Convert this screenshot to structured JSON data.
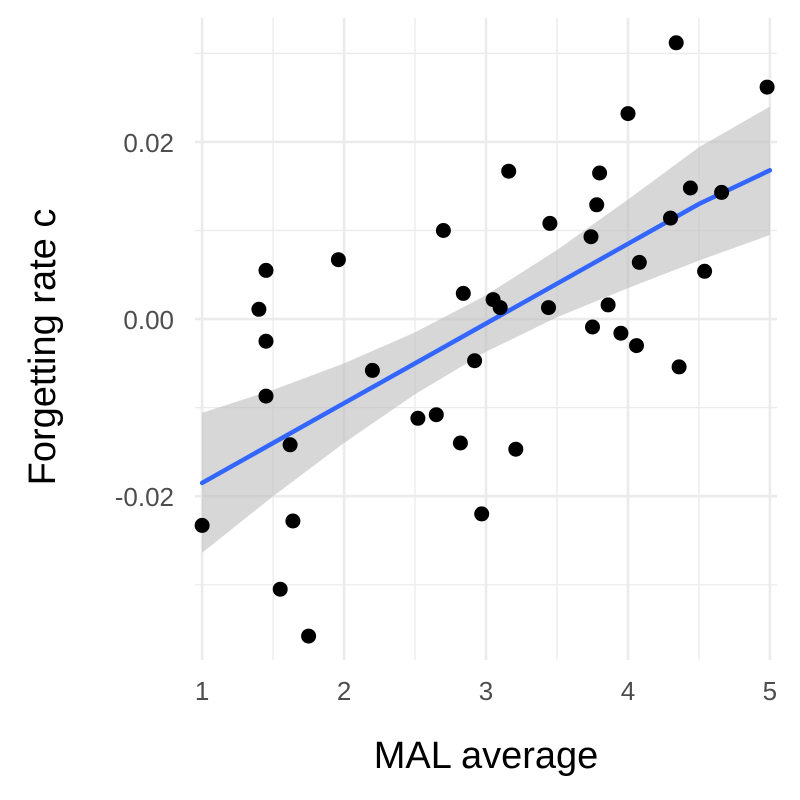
{
  "chart_data": {
    "type": "scatter",
    "title": "",
    "xlabel": "MAL average",
    "ylabel": "Forgetting rate c",
    "xlim": [
      0.95,
      5.05
    ],
    "ylim": [
      -0.0385,
      0.034
    ],
    "x_ticks": [
      1,
      2,
      3,
      4,
      5
    ],
    "x_tick_labels": [
      "1",
      "2",
      "3",
      "4",
      "5"
    ],
    "y_ticks": [
      -0.02,
      0.0,
      0.02
    ],
    "y_tick_labels": [
      "-0.02",
      "0.00",
      "0.02"
    ],
    "grid": true,
    "legend": "none",
    "colors": {
      "points": "#000000",
      "fit_line": "#3366FF",
      "confidence_band": "#bfbfbf",
      "grid": "#ebebeb"
    },
    "points": [
      {
        "x": 1.0,
        "y": -0.0233
      },
      {
        "x": 1.4,
        "y": 0.0011
      },
      {
        "x": 1.45,
        "y": 0.0055
      },
      {
        "x": 1.45,
        "y": -0.0025
      },
      {
        "x": 1.45,
        "y": -0.0087
      },
      {
        "x": 1.55,
        "y": -0.0305
      },
      {
        "x": 1.62,
        "y": -0.0142
      },
      {
        "x": 1.64,
        "y": -0.0228
      },
      {
        "x": 1.75,
        "y": -0.0358
      },
      {
        "x": 1.96,
        "y": 0.0067
      },
      {
        "x": 2.2,
        "y": -0.0058
      },
      {
        "x": 2.52,
        "y": -0.0112
      },
      {
        "x": 2.65,
        "y": -0.0108
      },
      {
        "x": 2.7,
        "y": 0.01
      },
      {
        "x": 2.82,
        "y": -0.014
      },
      {
        "x": 2.84,
        "y": 0.0029
      },
      {
        "x": 2.92,
        "y": -0.0047
      },
      {
        "x": 2.97,
        "y": -0.022
      },
      {
        "x": 3.05,
        "y": 0.0022
      },
      {
        "x": 3.1,
        "y": 0.0013
      },
      {
        "x": 3.16,
        "y": 0.0167
      },
      {
        "x": 3.21,
        "y": -0.0147
      },
      {
        "x": 3.44,
        "y": 0.0013
      },
      {
        "x": 3.45,
        "y": 0.0108
      },
      {
        "x": 3.74,
        "y": 0.0093
      },
      {
        "x": 3.75,
        "y": -0.0009
      },
      {
        "x": 3.78,
        "y": 0.0129
      },
      {
        "x": 3.8,
        "y": 0.0165
      },
      {
        "x": 3.86,
        "y": 0.0016
      },
      {
        "x": 3.95,
        "y": -0.0016
      },
      {
        "x": 4.0,
        "y": 0.0232
      },
      {
        "x": 4.06,
        "y": -0.003
      },
      {
        "x": 4.08,
        "y": 0.0064
      },
      {
        "x": 4.3,
        "y": 0.0114
      },
      {
        "x": 4.34,
        "y": 0.0312
      },
      {
        "x": 4.36,
        "y": -0.0054
      },
      {
        "x": 4.44,
        "y": 0.0148
      },
      {
        "x": 4.54,
        "y": 0.0054
      },
      {
        "x": 4.66,
        "y": 0.0143
      },
      {
        "x": 4.98,
        "y": 0.0262
      }
    ],
    "fit": {
      "x": [
        1.0,
        1.5,
        2.0,
        2.5,
        3.0,
        3.5,
        4.0,
        4.5,
        5.0
      ],
      "y": [
        -0.0185,
        -0.014,
        -0.0095,
        -0.005,
        -0.0005,
        0.004,
        0.0085,
        0.013,
        0.0168
      ],
      "lower": [
        -0.0264,
        -0.02,
        -0.014,
        -0.0085,
        -0.0037,
        0.0002,
        0.0035,
        0.0066,
        0.0095
      ],
      "upper": [
        -0.0106,
        -0.008,
        -0.005,
        -0.0015,
        0.0027,
        0.0078,
        0.0135,
        0.0194,
        0.024
      ]
    }
  }
}
